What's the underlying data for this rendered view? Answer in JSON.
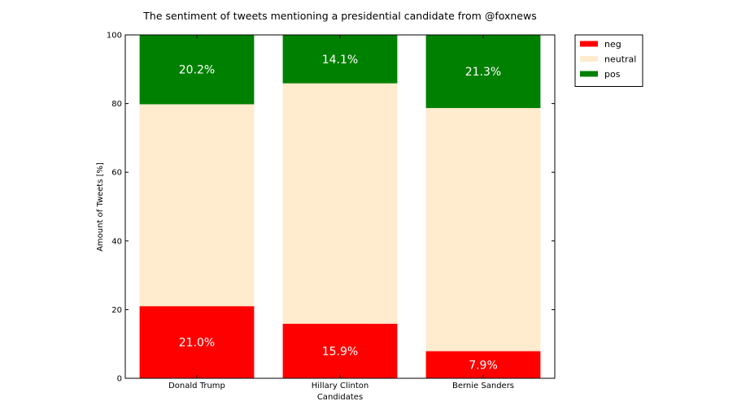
{
  "chart_data": {
    "type": "bar",
    "stacked": true,
    "title": "The sentiment of tweets mentioning a presidential candidate from @foxnews",
    "xlabel": "Candidates",
    "ylabel": "Amount of Tweets [%]",
    "ylim": [
      0,
      100
    ],
    "yticks": [
      "0",
      "20",
      "40",
      "60",
      "80",
      "100"
    ],
    "categories": [
      "Donald Trump",
      "Hillary Clinton",
      "Bernie Sanders"
    ],
    "series": [
      {
        "name": "neg",
        "color": "#ff0000",
        "values": [
          21.0,
          15.9,
          7.9
        ],
        "labels": [
          "21.0%",
          "15.9%",
          "7.9%"
        ]
      },
      {
        "name": "neutral",
        "color": "#ffebcd",
        "values": [
          58.8,
          70.0,
          70.8
        ]
      },
      {
        "name": "pos",
        "color": "#008000",
        "values": [
          20.2,
          14.1,
          21.3
        ],
        "labels": [
          "20.2%",
          "14.1%",
          "21.3%"
        ]
      }
    ],
    "legend": {
      "placement": "outside-top-right"
    },
    "grid": false
  }
}
